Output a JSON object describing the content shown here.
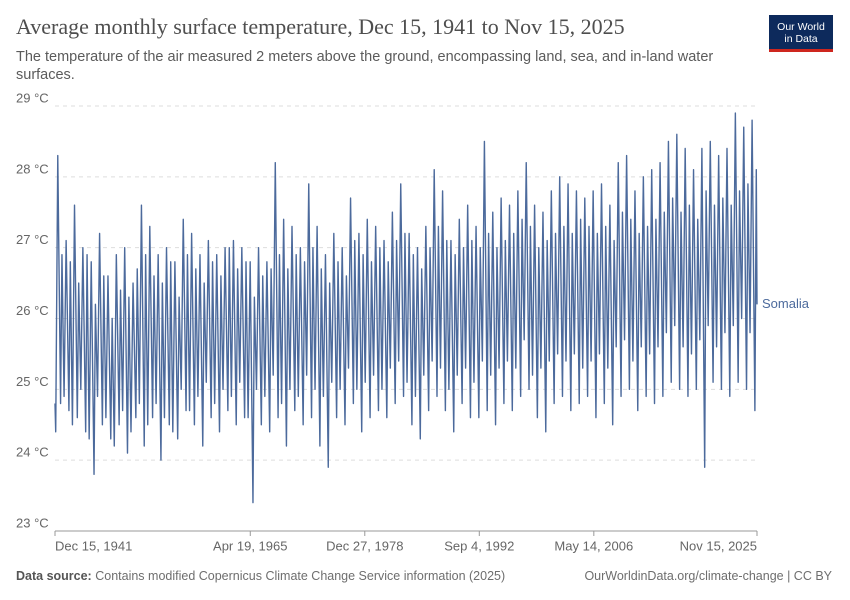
{
  "chart_data": {
    "type": "line",
    "title": "Average monthly surface temperature, Dec 15, 1941 to Nov 15, 2025",
    "subtitle": "The temperature of the air measured 2 meters above the ground, encompassing land, sea, and in-land water surfaces.",
    "logo": [
      "Our World",
      "in Data"
    ],
    "source_label": "Data source:",
    "source": "Contains modified Copernicus Climate Change Service information (2025)",
    "credit": "OurWorldinData.org/climate-change | CC BY",
    "grid": true,
    "xlim": [
      "1941-12-15",
      "2025-11-15"
    ],
    "xticks": [
      {
        "value": "1941-12-15",
        "label": "Dec 15, 1941"
      },
      {
        "value": "1965-04-19",
        "label": "Apr 19, 1965"
      },
      {
        "value": "1978-12-27",
        "label": "Dec 27, 1978"
      },
      {
        "value": "1992-09-04",
        "label": "Sep 4, 1992"
      },
      {
        "value": "2006-05-14",
        "label": "May 14, 2006"
      },
      {
        "value": "2025-11-15",
        "label": "Nov 15, 2025"
      }
    ],
    "ylim": [
      23,
      29
    ],
    "yticks": [
      {
        "value": 23,
        "label": "23 °C"
      },
      {
        "value": 24,
        "label": "24 °C"
      },
      {
        "value": 25,
        "label": "25 °C"
      },
      {
        "value": 26,
        "label": "26 °C"
      },
      {
        "value": 27,
        "label": "27 °C"
      },
      {
        "value": 28,
        "label": "28 °C"
      },
      {
        "value": 29,
        "label": "29 °C"
      }
    ],
    "x": [
      "1941-12-15",
      "1942-01-15",
      "1942-04-15",
      "1942-08-15",
      "1942-10-15",
      "1943-01-15",
      "1943-04-15",
      "1943-08-15",
      "1943-10-15",
      "1944-01-15",
      "1944-04-15",
      "1944-08-15",
      "1944-10-15",
      "1945-01-15",
      "1945-04-15",
      "1945-08-15",
      "1945-10-15",
      "1946-01-15",
      "1946-04-15",
      "1946-08-15",
      "1946-10-15",
      "1947-01-15",
      "1947-04-15",
      "1947-08-15",
      "1947-10-15",
      "1948-01-15",
      "1948-04-15",
      "1948-08-15",
      "1948-10-15",
      "1949-01-15",
      "1949-04-15",
      "1949-08-15",
      "1949-10-15",
      "1950-01-15",
      "1950-04-15",
      "1950-08-15",
      "1950-10-15",
      "1951-01-15",
      "1951-04-15",
      "1951-08-15",
      "1951-10-15",
      "1952-01-15",
      "1952-04-15",
      "1952-08-15",
      "1952-10-15",
      "1953-01-15",
      "1953-04-15",
      "1953-08-15",
      "1953-10-15",
      "1954-01-15",
      "1954-04-15",
      "1954-08-15",
      "1954-10-15",
      "1955-01-15",
      "1955-04-15",
      "1955-08-15",
      "1955-10-15",
      "1956-01-15",
      "1956-04-15",
      "1956-08-15",
      "1956-10-15",
      "1957-01-15",
      "1957-04-15",
      "1957-08-15",
      "1957-10-15",
      "1958-01-15",
      "1958-04-15",
      "1958-08-15",
      "1958-10-15",
      "1959-01-15",
      "1959-04-15",
      "1959-08-15",
      "1959-10-15",
      "1960-01-15",
      "1960-04-15",
      "1960-08-15",
      "1960-10-15",
      "1961-01-15",
      "1961-04-15",
      "1961-08-15",
      "1961-10-15",
      "1962-01-15",
      "1962-04-15",
      "1962-08-15",
      "1962-10-15",
      "1963-01-15",
      "1963-04-15",
      "1963-08-15",
      "1963-10-15",
      "1964-01-15",
      "1964-04-15",
      "1964-08-15",
      "1964-10-15",
      "1965-01-15",
      "1965-04-15",
      "1965-08-15",
      "1965-10-15",
      "1966-01-15",
      "1966-04-15",
      "1966-08-15",
      "1966-10-15",
      "1967-01-15",
      "1967-04-15",
      "1967-08-15",
      "1967-10-15",
      "1968-01-15",
      "1968-04-15",
      "1968-08-15",
      "1968-10-15",
      "1969-01-15",
      "1969-04-15",
      "1969-08-15",
      "1969-10-15",
      "1970-01-15",
      "1970-04-15",
      "1970-08-15",
      "1970-10-15",
      "1971-01-15",
      "1971-04-15",
      "1971-08-15",
      "1971-10-15",
      "1972-01-15",
      "1972-04-15",
      "1972-08-15",
      "1972-10-15",
      "1973-01-15",
      "1973-04-15",
      "1973-08-15",
      "1973-10-15",
      "1974-01-15",
      "1974-04-15",
      "1974-08-15",
      "1974-10-15",
      "1975-01-15",
      "1975-04-15",
      "1975-08-15",
      "1975-10-15",
      "1976-01-15",
      "1976-04-15",
      "1976-08-15",
      "1976-10-15",
      "1977-01-15",
      "1977-04-15",
      "1977-08-15",
      "1977-10-15",
      "1978-01-15",
      "1978-04-15",
      "1978-08-15",
      "1978-10-15",
      "1979-01-15",
      "1979-04-15",
      "1979-08-15",
      "1979-10-15",
      "1980-01-15",
      "1980-04-15",
      "1980-08-15",
      "1980-10-15",
      "1981-01-15",
      "1981-04-15",
      "1981-08-15",
      "1981-10-15",
      "1982-01-15",
      "1982-04-15",
      "1982-08-15",
      "1982-10-15",
      "1983-01-15",
      "1983-04-15",
      "1983-08-15",
      "1983-10-15",
      "1984-01-15",
      "1984-04-15",
      "1984-08-15",
      "1984-10-15",
      "1985-01-15",
      "1985-04-15",
      "1985-08-15",
      "1985-10-15",
      "1986-01-15",
      "1986-04-15",
      "1986-08-15",
      "1986-10-15",
      "1987-01-15",
      "1987-04-15",
      "1987-08-15",
      "1987-10-15",
      "1988-01-15",
      "1988-04-15",
      "1988-08-15",
      "1988-10-15",
      "1989-01-15",
      "1989-04-15",
      "1989-08-15",
      "1989-10-15",
      "1990-01-15",
      "1990-04-15",
      "1990-08-15",
      "1990-10-15",
      "1991-01-15",
      "1991-04-15",
      "1991-08-15",
      "1991-10-15",
      "1992-01-15",
      "1992-04-15",
      "1992-08-15",
      "1992-10-15",
      "1993-01-15",
      "1993-04-15",
      "1993-08-15",
      "1993-10-15",
      "1994-01-15",
      "1994-04-15",
      "1994-08-15",
      "1994-10-15",
      "1995-01-15",
      "1995-04-15",
      "1995-08-15",
      "1995-10-15",
      "1996-01-15",
      "1996-04-15",
      "1996-08-15",
      "1996-10-15",
      "1997-01-15",
      "1997-04-15",
      "1997-08-15",
      "1997-10-15",
      "1998-01-15",
      "1998-04-15",
      "1998-08-15",
      "1998-10-15",
      "1999-01-15",
      "1999-04-15",
      "1999-08-15",
      "1999-10-15",
      "2000-01-15",
      "2000-04-15",
      "2000-08-15",
      "2000-10-15",
      "2001-01-15",
      "2001-04-15",
      "2001-08-15",
      "2001-10-15",
      "2002-01-15",
      "2002-04-15",
      "2002-08-15",
      "2002-10-15",
      "2003-01-15",
      "2003-04-15",
      "2003-08-15",
      "2003-10-15",
      "2004-01-15",
      "2004-04-15",
      "2004-08-15",
      "2004-10-15",
      "2005-01-15",
      "2005-04-15",
      "2005-08-15",
      "2005-10-15",
      "2006-01-15",
      "2006-04-15",
      "2006-08-15",
      "2006-10-15",
      "2007-01-15",
      "2007-04-15",
      "2007-08-15",
      "2007-10-15",
      "2008-01-15",
      "2008-04-15",
      "2008-08-15",
      "2008-10-15",
      "2009-01-15",
      "2009-04-15",
      "2009-08-15",
      "2009-10-15",
      "2010-01-15",
      "2010-04-15",
      "2010-08-15",
      "2010-10-15",
      "2011-01-15",
      "2011-04-15",
      "2011-08-15",
      "2011-10-15",
      "2012-01-15",
      "2012-04-15",
      "2012-08-15",
      "2012-10-15",
      "2013-01-15",
      "2013-04-15",
      "2013-08-15",
      "2013-10-15",
      "2014-01-15",
      "2014-04-15",
      "2014-08-15",
      "2014-10-15",
      "2015-01-15",
      "2015-04-15",
      "2015-08-15",
      "2015-10-15",
      "2016-01-15",
      "2016-04-15",
      "2016-08-15",
      "2016-10-15",
      "2017-01-15",
      "2017-04-15",
      "2017-08-15",
      "2017-10-15",
      "2018-01-15",
      "2018-04-15",
      "2018-08-15",
      "2018-10-15",
      "2019-01-15",
      "2019-04-15",
      "2019-08-15",
      "2019-10-15",
      "2020-01-15",
      "2020-04-15",
      "2020-08-15",
      "2020-10-15",
      "2021-01-15",
      "2021-04-15",
      "2021-08-15",
      "2021-10-15",
      "2022-01-15",
      "2022-04-15",
      "2022-08-15",
      "2022-10-15",
      "2023-01-15",
      "2023-04-15",
      "2023-08-15",
      "2023-10-15",
      "2024-01-15",
      "2024-04-15",
      "2024-08-15",
      "2024-10-15",
      "2025-01-15",
      "2025-04-15",
      "2025-08-15",
      "2025-10-15",
      "2025-11-15"
    ],
    "series": [
      {
        "name": "Somalia",
        "color": "#4c6a9c",
        "values": [
          24.8,
          24.4,
          28.3,
          24.8,
          26.9,
          24.9,
          27.1,
          24.7,
          26.8,
          24.5,
          27.6,
          24.6,
          26.5,
          25.0,
          27.0,
          24.4,
          26.9,
          24.3,
          26.8,
          23.8,
          26.2,
          24.9,
          27.2,
          24.5,
          26.6,
          24.6,
          26.6,
          24.3,
          26.0,
          24.2,
          26.9,
          24.5,
          26.4,
          24.7,
          27.0,
          24.1,
          26.3,
          24.4,
          26.5,
          24.6,
          26.7,
          24.8,
          27.6,
          24.2,
          26.9,
          24.5,
          27.3,
          24.6,
          26.6,
          24.8,
          26.9,
          24.0,
          26.5,
          24.6,
          27.0,
          24.5,
          26.8,
          24.4,
          26.8,
          24.3,
          26.3,
          25.0,
          27.4,
          24.7,
          26.9,
          24.7,
          27.2,
          24.5,
          26.7,
          24.9,
          26.9,
          24.2,
          26.5,
          25.1,
          27.1,
          24.6,
          26.8,
          24.8,
          26.9,
          24.4,
          26.6,
          25.0,
          27.0,
          24.7,
          27.0,
          24.9,
          27.1,
          24.5,
          26.7,
          25.1,
          27.0,
          24.6,
          26.8,
          24.6,
          26.8,
          23.4,
          26.3,
          25.0,
          27.0,
          24.5,
          26.6,
          24.9,
          26.8,
          24.4,
          26.7,
          25.2,
          28.2,
          24.6,
          26.9,
          24.8,
          27.4,
          24.2,
          26.7,
          25.0,
          27.3,
          24.7,
          26.9,
          24.9,
          27.0,
          24.5,
          26.8,
          25.2,
          27.9,
          24.6,
          27.0,
          25.0,
          27.3,
          24.2,
          26.7,
          24.9,
          26.9,
          23.9,
          26.5,
          25.1,
          27.2,
          24.6,
          26.8,
          25.0,
          27.0,
          24.5,
          26.6,
          25.3,
          27.7,
          24.8,
          27.1,
          25.0,
          27.2,
          24.4,
          26.9,
          25.1,
          27.4,
          24.6,
          26.8,
          25.2,
          27.3,
          24.7,
          27.0,
          25.0,
          27.1,
          24.6,
          26.8,
          25.3,
          27.5,
          24.8,
          27.1,
          25.4,
          27.9,
          24.9,
          27.2,
          25.1,
          27.2,
          24.5,
          26.9,
          24.9,
          27.0,
          24.3,
          26.7,
          25.2,
          27.3,
          24.7,
          27.0,
          25.4,
          28.1,
          24.9,
          27.3,
          25.3,
          27.8,
          24.7,
          27.1,
          25.0,
          27.1,
          24.4,
          26.9,
          25.2,
          27.4,
          24.8,
          27.0,
          25.3,
          27.6,
          24.6,
          27.1,
          25.1,
          27.3,
          24.6,
          27.0,
          25.4,
          28.5,
          24.7,
          27.2,
          25.2,
          27.5,
          24.5,
          27.0,
          25.3,
          27.7,
          24.8,
          27.1,
          25.4,
          27.6,
          24.7,
          27.2,
          25.3,
          27.8,
          24.9,
          27.4,
          25.7,
          28.2,
          25.0,
          27.3,
          25.2,
          27.6,
          24.6,
          27.0,
          25.3,
          27.5,
          24.4,
          27.1,
          25.4,
          27.8,
          24.8,
          27.2,
          25.5,
          28.0,
          24.9,
          27.3,
          25.4,
          27.9,
          24.7,
          27.2,
          25.5,
          27.8,
          24.8,
          27.4,
          25.3,
          27.7,
          24.9,
          27.3,
          25.4,
          27.8,
          24.6,
          27.2,
          25.5,
          27.9,
          24.8,
          27.3,
          25.3,
          27.6,
          24.5,
          27.1,
          25.6,
          28.2,
          24.9,
          27.5,
          25.7,
          28.3,
          25.0,
          27.4,
          25.4,
          27.8,
          24.7,
          27.2,
          25.6,
          28.0,
          24.9,
          27.3,
          25.5,
          28.1,
          24.8,
          27.4,
          25.6,
          28.2,
          24.9,
          27.5,
          25.8,
          28.5,
          25.1,
          27.7,
          25.9,
          28.6,
          25.0,
          27.5,
          25.6,
          28.4,
          24.9,
          27.6,
          25.5,
          28.1,
          25.0,
          27.4,
          25.7,
          28.4,
          23.9,
          27.8,
          25.9,
          28.5,
          25.1,
          27.6,
          25.6,
          28.3,
          25.0,
          27.7,
          25.8,
          28.4,
          24.9,
          27.6,
          25.9,
          28.9,
          25.1,
          27.8,
          26.0,
          28.7,
          25.0,
          27.9,
          25.8,
          28.8,
          24.7,
          28.1,
          26.2
        ]
      }
    ]
  }
}
